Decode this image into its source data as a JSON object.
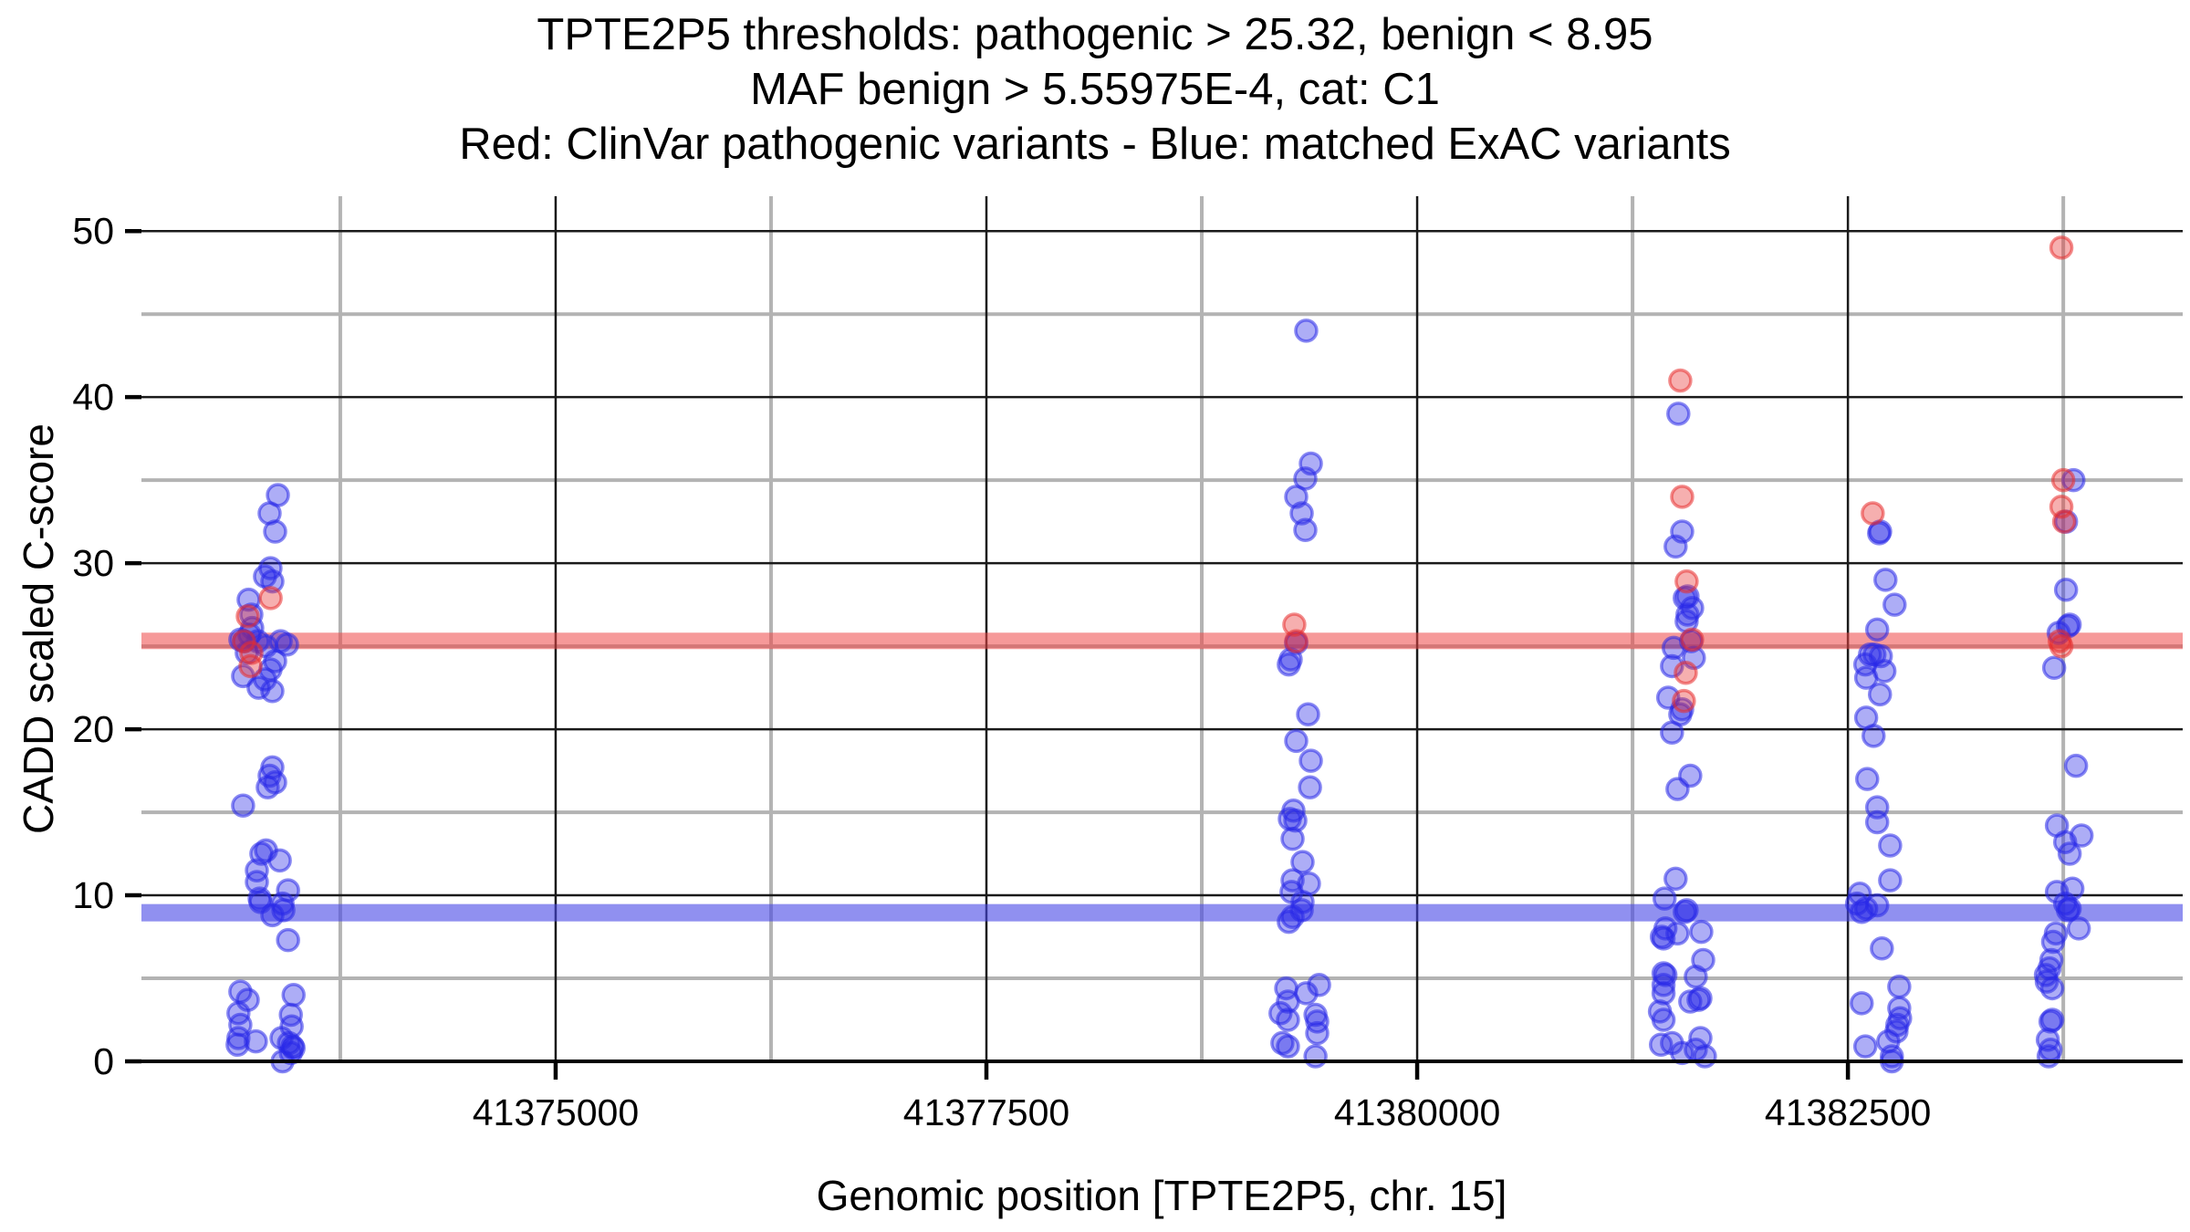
{
  "title": {
    "line1": "TPTE2P5 thresholds: pathogenic > 25.32, benign < 8.95",
    "line2": "MAF benign > 5.55975E-4, cat: C1",
    "line3": "Red: ClinVar pathogenic variants - Blue: matched ExAC variants"
  },
  "chart_data": {
    "type": "scatter",
    "title": "TPTE2P5 thresholds: pathogenic > 25.32, benign < 8.95",
    "subtitle": "MAF benign > 5.55975E-4, cat: C1",
    "caption": "Red: ClinVar pathogenic variants - Blue: matched ExAC variants",
    "xlabel": "Genomic position [TPTE2P5, chr. 15]",
    "ylabel": "CADD scaled C-score",
    "xlim": [
      41372596,
      41384443
    ],
    "ylim": [
      0,
      52.1
    ],
    "x_ticks": [
      41375000,
      41377500,
      41380000,
      41382500
    ],
    "x_minor_ticks": [
      41373750,
      41376250,
      41378750,
      41381250,
      41383750
    ],
    "y_ticks": [
      0,
      10,
      20,
      30,
      40,
      50
    ],
    "y_minor_ticks": [
      5,
      15,
      25,
      35,
      45
    ],
    "grid": {
      "major": true,
      "minor": true,
      "legend": "none"
    },
    "colors": {
      "grid_major": "#1a1a1a",
      "grid_minor": "#b3b3b3",
      "axis": "#000000",
      "pathogenic_band": "#ee4545",
      "benign_band": "#4646e6",
      "red_point": "#e82e2e",
      "blue_point": "#2828e8"
    },
    "thresholds": {
      "pathogenic": {
        "value": 25.32,
        "label": "pathogenic > 25.32"
      },
      "benign": {
        "value": 8.95,
        "label": "benign < 8.95"
      }
    },
    "series": [
      {
        "key": "clinvar-pathogenic",
        "name": "ClinVar pathogenic variants",
        "color": "#e82e2e",
        "points": [
          [
            41373346,
            27.9
          ],
          [
            41373213,
            26.8
          ],
          [
            41373191,
            25.3
          ],
          [
            41373234,
            24.6
          ],
          [
            41373229,
            23.8
          ],
          [
            41379287,
            26.3
          ],
          [
            41379298,
            25.3
          ],
          [
            41381527,
            41.0
          ],
          [
            41381538,
            34.0
          ],
          [
            41381564,
            28.9
          ],
          [
            41381596,
            25.4
          ],
          [
            41381559,
            23.4
          ],
          [
            41381548,
            21.7
          ],
          [
            41382644,
            33.0
          ],
          [
            41383739,
            49.0
          ],
          [
            41383750,
            35.0
          ],
          [
            41383739,
            33.4
          ],
          [
            41383755,
            32.5
          ],
          [
            41383729,
            25.3
          ],
          [
            41383739,
            25.0
          ]
        ]
      },
      {
        "key": "exac-matched",
        "name": "matched ExAC variants",
        "color": "#2828e8",
        "points": [
          [
            41373388,
            34.1
          ],
          [
            41373340,
            33.0
          ],
          [
            41373372,
            31.9
          ],
          [
            41373345,
            29.7
          ],
          [
            41373313,
            29.2
          ],
          [
            41373356,
            28.9
          ],
          [
            41373218,
            27.8
          ],
          [
            41373234,
            26.9
          ],
          [
            41373239,
            26.1
          ],
          [
            41373223,
            25.7
          ],
          [
            41373191,
            25.3
          ],
          [
            41373170,
            25.4
          ],
          [
            41373271,
            25.3
          ],
          [
            41373404,
            25.3
          ],
          [
            41373441,
            25.1
          ],
          [
            41373319,
            25.0
          ],
          [
            41373207,
            24.6
          ],
          [
            41373372,
            24.1
          ],
          [
            41373345,
            23.6
          ],
          [
            41373186,
            23.2
          ],
          [
            41373313,
            23.0
          ],
          [
            41373276,
            22.5
          ],
          [
            41373356,
            22.3
          ],
          [
            41373356,
            17.7
          ],
          [
            41373340,
            17.2
          ],
          [
            41373372,
            16.8
          ],
          [
            41373329,
            16.5
          ],
          [
            41373186,
            15.4
          ],
          [
            41373319,
            12.7
          ],
          [
            41373292,
            12.5
          ],
          [
            41373399,
            12.1
          ],
          [
            41373266,
            11.5
          ],
          [
            41373266,
            10.8
          ],
          [
            41373447,
            10.3
          ],
          [
            41373282,
            9.8
          ],
          [
            41373287,
            9.6
          ],
          [
            41373415,
            9.5
          ],
          [
            41373420,
            9.1
          ],
          [
            41373356,
            8.8
          ],
          [
            41373447,
            7.3
          ],
          [
            41373170,
            4.2
          ],
          [
            41373479,
            4.0
          ],
          [
            41373213,
            3.7
          ],
          [
            41373159,
            2.9
          ],
          [
            41373463,
            2.8
          ],
          [
            41373170,
            2.2
          ],
          [
            41373468,
            2.1
          ],
          [
            41373159,
            1.4
          ],
          [
            41373409,
            1.4
          ],
          [
            41373260,
            1.2
          ],
          [
            41373452,
            1.1
          ],
          [
            41373154,
            1.0
          ],
          [
            41373473,
            0.9
          ],
          [
            41373479,
            0.8
          ],
          [
            41373463,
            0.5
          ],
          [
            41373415,
            0.0
          ],
          [
            41379356,
            44.0
          ],
          [
            41379383,
            36.0
          ],
          [
            41379351,
            35.1
          ],
          [
            41379298,
            34.0
          ],
          [
            41379330,
            33.0
          ],
          [
            41379351,
            32.0
          ],
          [
            41379298,
            25.2
          ],
          [
            41379266,
            24.2
          ],
          [
            41379255,
            23.9
          ],
          [
            41379367,
            20.9
          ],
          [
            41379298,
            19.3
          ],
          [
            41379383,
            18.1
          ],
          [
            41379378,
            16.5
          ],
          [
            41379282,
            15.1
          ],
          [
            41379261,
            14.6
          ],
          [
            41379293,
            14.5
          ],
          [
            41379277,
            13.4
          ],
          [
            41379335,
            12.0
          ],
          [
            41379277,
            10.9
          ],
          [
            41379372,
            10.7
          ],
          [
            41379271,
            10.2
          ],
          [
            41379335,
            9.6
          ],
          [
            41379330,
            9.1
          ],
          [
            41379277,
            8.7
          ],
          [
            41379255,
            8.4
          ],
          [
            41379431,
            4.6
          ],
          [
            41379240,
            4.4
          ],
          [
            41379356,
            4.1
          ],
          [
            41379250,
            3.6
          ],
          [
            41379207,
            2.9
          ],
          [
            41379410,
            2.8
          ],
          [
            41379250,
            2.5
          ],
          [
            41379420,
            2.4
          ],
          [
            41379420,
            1.7
          ],
          [
            41379218,
            1.1
          ],
          [
            41379250,
            0.9
          ],
          [
            41379410,
            0.3
          ],
          [
            41381516,
            39.0
          ],
          [
            41381538,
            31.9
          ],
          [
            41381500,
            31.0
          ],
          [
            41381569,
            28.0
          ],
          [
            41381553,
            27.9
          ],
          [
            41381596,
            27.3
          ],
          [
            41381569,
            26.9
          ],
          [
            41381564,
            26.5
          ],
          [
            41381590,
            25.3
          ],
          [
            41381489,
            24.9
          ],
          [
            41381606,
            24.3
          ],
          [
            41381479,
            23.8
          ],
          [
            41381457,
            21.9
          ],
          [
            41381538,
            21.2
          ],
          [
            41381527,
            20.9
          ],
          [
            41381479,
            19.8
          ],
          [
            41381585,
            17.2
          ],
          [
            41381511,
            16.4
          ],
          [
            41381500,
            11.0
          ],
          [
            41381436,
            9.8
          ],
          [
            41381564,
            9.1
          ],
          [
            41381553,
            9.0
          ],
          [
            41381441,
            8.0
          ],
          [
            41381511,
            7.7
          ],
          [
            41381420,
            7.5
          ],
          [
            41381430,
            7.4
          ],
          [
            41381649,
            7.8
          ],
          [
            41381660,
            6.1
          ],
          [
            41381430,
            5.3
          ],
          [
            41381441,
            5.2
          ],
          [
            41381617,
            5.1
          ],
          [
            41381430,
            4.6
          ],
          [
            41381430,
            4.1
          ],
          [
            41381644,
            3.8
          ],
          [
            41381633,
            3.7
          ],
          [
            41381585,
            3.6
          ],
          [
            41381409,
            3.0
          ],
          [
            41381430,
            2.5
          ],
          [
            41381644,
            1.4
          ],
          [
            41381415,
            1.0
          ],
          [
            41381479,
            1.1
          ],
          [
            41381617,
            0.7
          ],
          [
            41381538,
            0.5
          ],
          [
            41381670,
            0.3
          ],
          [
            41382687,
            31.9
          ],
          [
            41382681,
            31.8
          ],
          [
            41382718,
            29.0
          ],
          [
            41382771,
            27.5
          ],
          [
            41382670,
            26.0
          ],
          [
            41382654,
            24.5
          ],
          [
            41382628,
            24.5
          ],
          [
            41382691,
            24.4
          ],
          [
            41382601,
            23.9
          ],
          [
            41382712,
            23.5
          ],
          [
            41382606,
            23.1
          ],
          [
            41382686,
            22.1
          ],
          [
            41382606,
            20.7
          ],
          [
            41382649,
            19.6
          ],
          [
            41382612,
            17.0
          ],
          [
            41382670,
            15.3
          ],
          [
            41382670,
            14.4
          ],
          [
            41382745,
            13.0
          ],
          [
            41382745,
            10.9
          ],
          [
            41382569,
            10.1
          ],
          [
            41382553,
            9.5
          ],
          [
            41382670,
            9.4
          ],
          [
            41382606,
            9.2
          ],
          [
            41382580,
            9.0
          ],
          [
            41382697,
            6.8
          ],
          [
            41382798,
            4.5
          ],
          [
            41382580,
            3.5
          ],
          [
            41382798,
            3.2
          ],
          [
            41382803,
            2.6
          ],
          [
            41382787,
            2.2
          ],
          [
            41382782,
            1.8
          ],
          [
            41382734,
            1.2
          ],
          [
            41382601,
            0.9
          ],
          [
            41382755,
            0.3
          ],
          [
            41382755,
            0.0
          ],
          [
            41383809,
            35.0
          ],
          [
            41383766,
            32.5
          ],
          [
            41383766,
            28.4
          ],
          [
            41383787,
            26.3
          ],
          [
            41383777,
            26.2
          ],
          [
            41383723,
            25.8
          ],
          [
            41383697,
            23.7
          ],
          [
            41383824,
            17.8
          ],
          [
            41383713,
            14.2
          ],
          [
            41383856,
            13.6
          ],
          [
            41383761,
            13.2
          ],
          [
            41383787,
            12.5
          ],
          [
            41383803,
            10.4
          ],
          [
            41383713,
            10.2
          ],
          [
            41383761,
            9.5
          ],
          [
            41383787,
            9.2
          ],
          [
            41383777,
            9.1
          ],
          [
            41383840,
            8.0
          ],
          [
            41383707,
            7.7
          ],
          [
            41383691,
            7.2
          ],
          [
            41383681,
            6.1
          ],
          [
            41383670,
            5.6
          ],
          [
            41383649,
            5.2
          ],
          [
            41383654,
            4.8
          ],
          [
            41383686,
            4.4
          ],
          [
            41383686,
            2.5
          ],
          [
            41383676,
            2.4
          ],
          [
            41383660,
            1.3
          ],
          [
            41383676,
            0.7
          ],
          [
            41383665,
            0.3
          ]
        ]
      }
    ]
  }
}
